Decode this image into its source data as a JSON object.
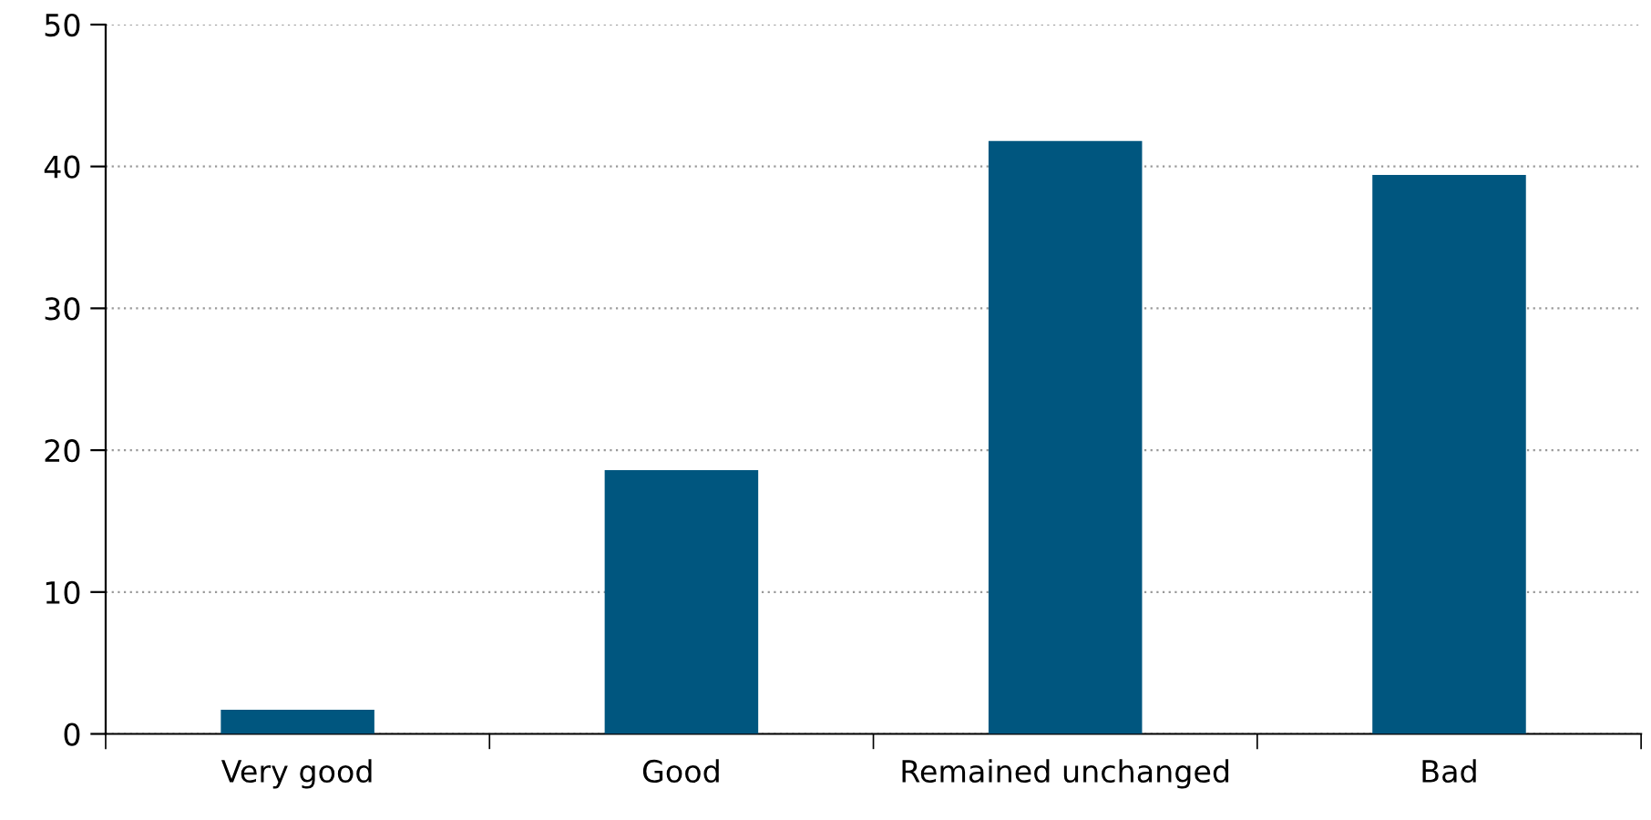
{
  "chart_data": {
    "type": "bar",
    "categories": [
      "Very good",
      "Good",
      "Remained unchanged",
      "Bad"
    ],
    "values": [
      1.7,
      18.6,
      41.8,
      39.4
    ],
    "color": "#00567f",
    "ylim": [
      0,
      50
    ],
    "yticks": [
      0,
      10,
      20,
      30,
      40,
      50
    ],
    "grid": "y"
  }
}
